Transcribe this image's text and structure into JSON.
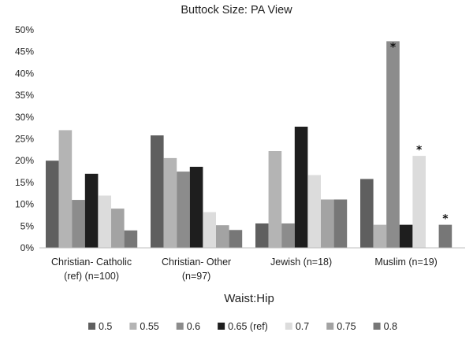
{
  "chart_data": {
    "type": "bar",
    "title": "Buttock Size: PA View",
    "xlabel": "Waist:Hip",
    "ylabel": "",
    "ylim": [
      0,
      50
    ],
    "y_ticks": [
      "0%",
      "5%",
      "10%",
      "15%",
      "20%",
      "25%",
      "30%",
      "35%",
      "40%",
      "45%",
      "50%"
    ],
    "grid": false,
    "legend_position": "bottom",
    "categories": [
      [
        "Christian- Catholic",
        "(ref) (n=100)"
      ],
      [
        "Christian- Other",
        "(n=97)"
      ],
      [
        "Jewish (n=18)"
      ],
      [
        "Muslim (n=19)"
      ]
    ],
    "series": [
      {
        "name": "0.5",
        "color": "#5f5f5f",
        "values": [
          20.0,
          25.8,
          5.6,
          15.8
        ]
      },
      {
        "name": "0.55",
        "color": "#b4b4b4",
        "values": [
          27.0,
          20.6,
          22.2,
          5.3
        ]
      },
      {
        "name": "0.6",
        "color": "#8c8c8c",
        "values": [
          11.0,
          17.5,
          5.6,
          47.4
        ]
      },
      {
        "name": "0.65 (ref)",
        "color": "#1e1e1e",
        "values": [
          17.0,
          18.6,
          27.8,
          5.3
        ]
      },
      {
        "name": "0.7",
        "color": "#dcdcdc",
        "values": [
          12.0,
          8.2,
          16.7,
          21.1
        ]
      },
      {
        "name": "0.75",
        "color": "#a3a3a3",
        "values": [
          9.0,
          5.2,
          11.1,
          0.0
        ]
      },
      {
        "name": "0.8",
        "color": "#777777",
        "values": [
          4.0,
          4.1,
          11.1,
          5.3
        ]
      }
    ],
    "annotations": [
      {
        "text": "*",
        "category": 3,
        "series": 2
      },
      {
        "text": "*",
        "category": 3,
        "series": 4
      },
      {
        "text": "*",
        "category": 3,
        "series": 6
      }
    ]
  }
}
